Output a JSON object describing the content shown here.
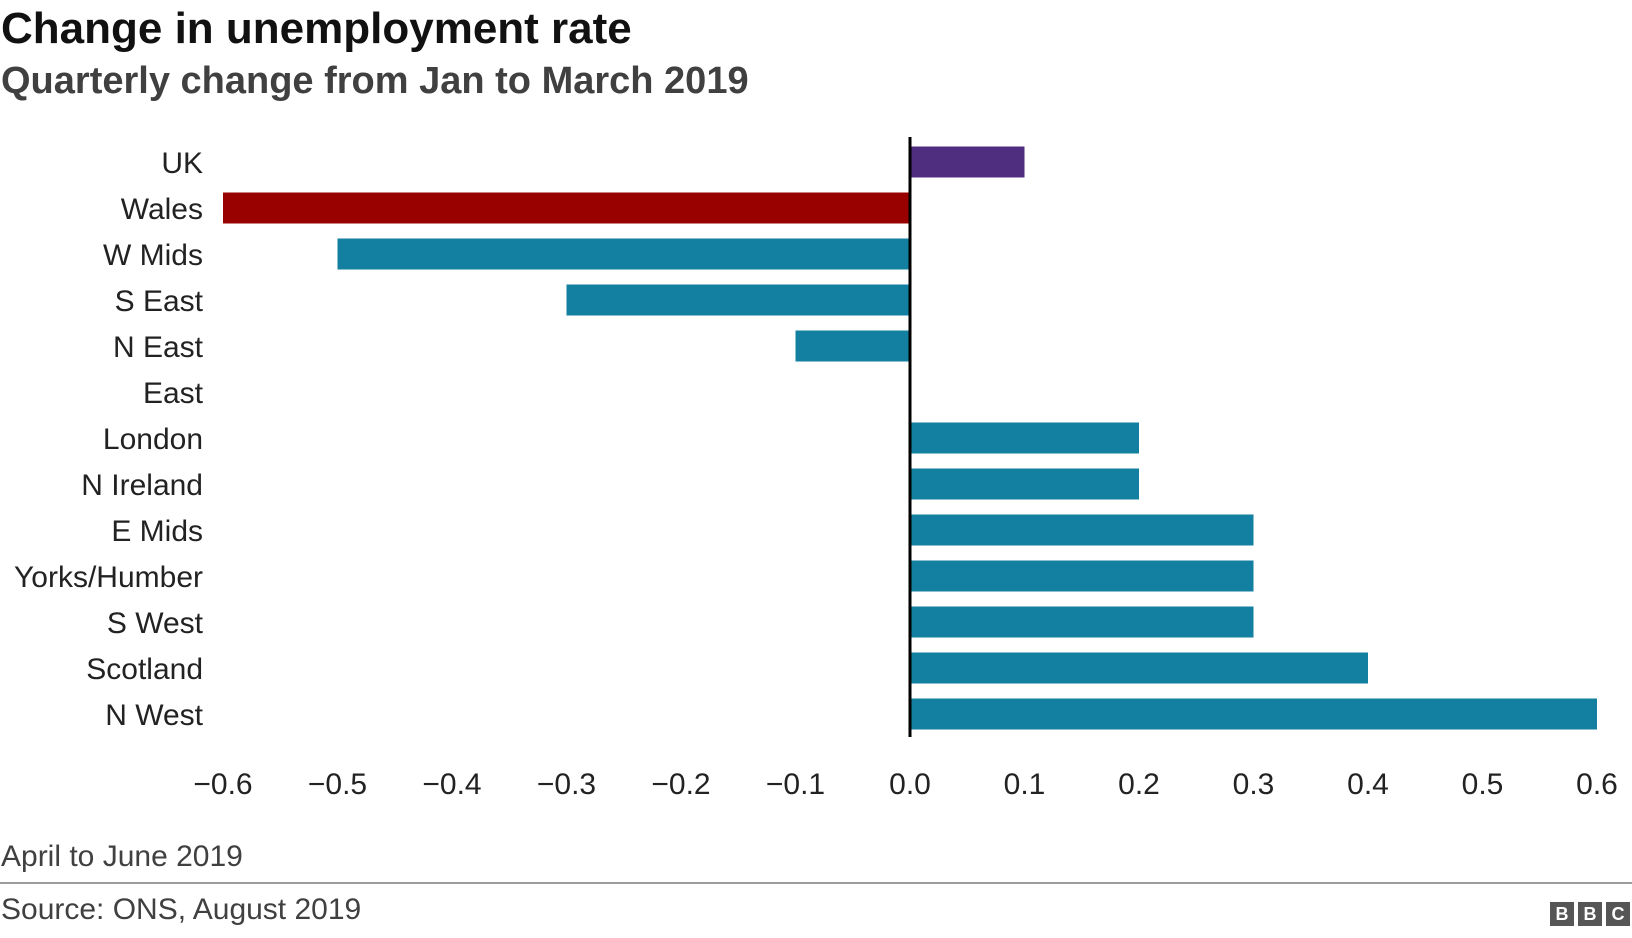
{
  "header": {
    "title": "Change in unemployment rate",
    "subtitle": "Quarterly change from Jan to March 2019"
  },
  "footer": {
    "note": "April to June 2019",
    "source": "Source: ONS, August 2019",
    "logo_letters": [
      "B",
      "B",
      "C"
    ]
  },
  "colors": {
    "uk": "#4f2d7f",
    "wales": "#990000",
    "regions": "#1380a1",
    "axis": "#000000"
  },
  "chart_data": {
    "type": "bar",
    "orientation": "horizontal",
    "title": "Change in unemployment rate",
    "subtitle": "Quarterly change from Jan to March 2019",
    "xlabel": "",
    "ylabel": "",
    "xlim": [
      -0.6,
      0.6
    ],
    "grid": false,
    "categories": [
      "UK",
      "Wales",
      "W Mids",
      "S East",
      "N East",
      "East",
      "London",
      "N Ireland",
      "E Mids",
      "Yorks/Humber",
      "S West",
      "Scotland",
      "N West"
    ],
    "values": [
      0.1,
      -0.6,
      -0.5,
      -0.3,
      -0.1,
      0.0,
      0.2,
      0.2,
      0.3,
      0.3,
      0.3,
      0.4,
      0.6
    ],
    "bar_colors": [
      "#4f2d7f",
      "#990000",
      "#1380a1",
      "#1380a1",
      "#1380a1",
      "#1380a1",
      "#1380a1",
      "#1380a1",
      "#1380a1",
      "#1380a1",
      "#1380a1",
      "#1380a1",
      "#1380a1"
    ],
    "x_ticks": [
      -0.6,
      -0.5,
      -0.4,
      -0.3,
      -0.2,
      -0.1,
      0.0,
      0.1,
      0.2,
      0.3,
      0.4,
      0.5,
      0.6
    ],
    "x_tick_labels": [
      "−0.6",
      "−0.5",
      "−0.4",
      "−0.3",
      "−0.2",
      "−0.1",
      "0.0",
      "0.1",
      "0.2",
      "0.3",
      "0.4",
      "0.5",
      "0.6"
    ]
  }
}
